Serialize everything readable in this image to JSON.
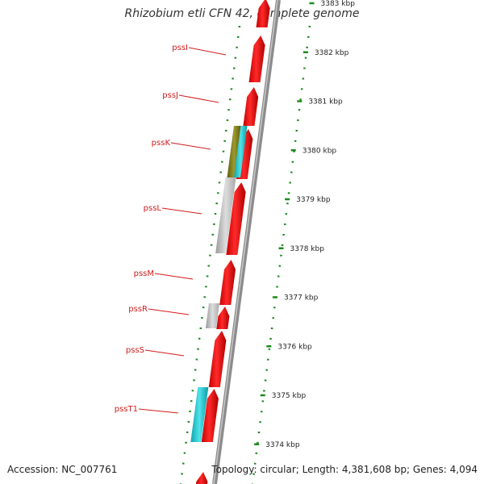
{
  "title": "Rhizobium etli CFN 42, complete genome",
  "footer": {
    "accession": "Accession: NC_007761",
    "summary": "Topology: circular; Length: 4,381,608 bp; Genes: 4,094"
  },
  "colors": {
    "cds_forward": "#ee1111",
    "backbone": "#8c8c8c",
    "tick": "#1c8a1c",
    "label": "#d11b1b",
    "gray_feature": "#bdbdbd",
    "cyan_feature": "#22c8d0",
    "olive_feature": "#7a7a20"
  },
  "kbp_ticks": [
    {
      "label": "3383 kbp",
      "kbp": 3383
    },
    {
      "label": "3382 kbp",
      "kbp": 3382
    },
    {
      "label": "3381 kbp",
      "kbp": 3381
    },
    {
      "label": "3380 kbp",
      "kbp": 3380
    },
    {
      "label": "3379 kbp",
      "kbp": 3379
    },
    {
      "label": "3378 kbp",
      "kbp": 3378
    },
    {
      "label": "3377 kbp",
      "kbp": 3377
    },
    {
      "label": "3376 kbp",
      "kbp": 3376
    },
    {
      "label": "3375 kbp",
      "kbp": 3375
    },
    {
      "label": "3374 kbp",
      "kbp": 3374
    }
  ],
  "gene_labels": [
    {
      "name": "pssI"
    },
    {
      "name": "pssJ"
    },
    {
      "name": "pssK"
    },
    {
      "name": "pssL"
    },
    {
      "name": "pssM"
    },
    {
      "name": "pssR"
    },
    {
      "name": "pssS"
    },
    {
      "name": "pssT1"
    }
  ]
}
